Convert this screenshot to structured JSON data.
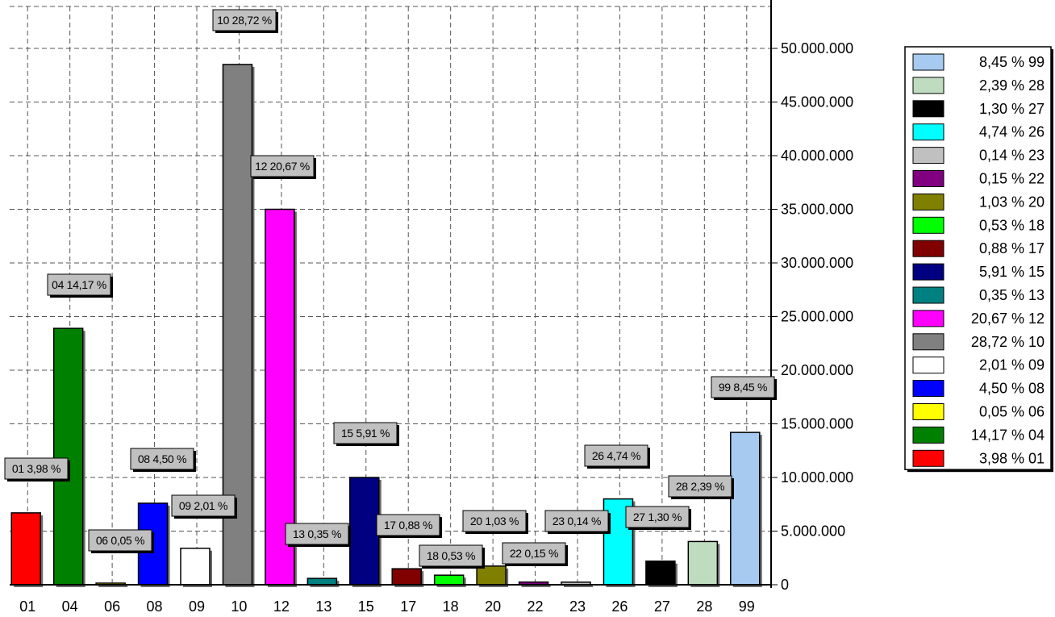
{
  "chart_data": {
    "type": "bar",
    "title": "",
    "xlabel": "",
    "ylabel": "",
    "ylim": [
      0,
      55000000
    ],
    "grid": true,
    "legend_position": "right",
    "y_ticks": [
      "0",
      "5.000.000",
      "10.000.000",
      "15.000.000",
      "20.000.000",
      "25.000.000",
      "30.000.000",
      "35.000.000",
      "40.000.000",
      "45.000.000",
      "50.000.000"
    ],
    "categories": [
      "01",
      "04",
      "06",
      "08",
      "09",
      "10",
      "12",
      "13",
      "15",
      "17",
      "18",
      "20",
      "22",
      "23",
      "26",
      "27",
      "28",
      "99"
    ],
    "values": [
      6700000,
      23900000,
      80000,
      7600000,
      3400000,
      48500000,
      35000000,
      590000,
      10000000,
      1490000,
      890000,
      1740000,
      250000,
      240000,
      8000000,
      2200000,
      4030000,
      14200000
    ],
    "data_labels": [
      "01 3,98 %",
      "04 14,17 %",
      "06 0,05 %",
      "08 4,50 %",
      "09 2,01 %",
      "10 28,72 %",
      "12 20,67 %",
      "13 0,35 %",
      "15 5,91 %",
      "17 0,88 %",
      "18 0,53 %",
      "20 1,03 %",
      "22 0,15 %",
      "23 0,14 %",
      "26 4,74 %",
      "27 1,30 %",
      "28 2,39 %",
      "99 8,45 %"
    ],
    "colors": [
      "#ff0000",
      "#008000",
      "#ffff00",
      "#0000ff",
      "#ffffff",
      "#808080",
      "#ff00ff",
      "#008080",
      "#000080",
      "#800000",
      "#00ff00",
      "#808000",
      "#800080",
      "#c0c0c0",
      "#00ffff",
      "#000000",
      "#c0dcc0",
      "#a6caf0"
    ],
    "legend": [
      {
        "label": "8,45 % 99",
        "color": "#a6caf0"
      },
      {
        "label": "2,39 % 28",
        "color": "#c0dcc0"
      },
      {
        "label": "1,30 % 27",
        "color": "#000000"
      },
      {
        "label": "4,74 % 26",
        "color": "#00ffff"
      },
      {
        "label": "0,14 % 23",
        "color": "#c0c0c0"
      },
      {
        "label": "0,15 % 22",
        "color": "#800080"
      },
      {
        "label": "1,03 % 20",
        "color": "#808000"
      },
      {
        "label": "0,53 % 18",
        "color": "#00ff00"
      },
      {
        "label": "0,88 % 17",
        "color": "#800000"
      },
      {
        "label": "5,91 % 15",
        "color": "#000080"
      },
      {
        "label": "0,35 % 13",
        "color": "#008080"
      },
      {
        "label": "20,67 % 12",
        "color": "#ff00ff"
      },
      {
        "label": "28,72 % 10",
        "color": "#808080"
      },
      {
        "label": "2,01 % 09",
        "color": "#ffffff"
      },
      {
        "label": "4,50 % 08",
        "color": "#0000ff"
      },
      {
        "label": "0,05 % 06",
        "color": "#ffff00"
      },
      {
        "label": "14,17 % 04",
        "color": "#008000"
      },
      {
        "label": "3,98 % 01",
        "color": "#ff0000"
      }
    ]
  }
}
